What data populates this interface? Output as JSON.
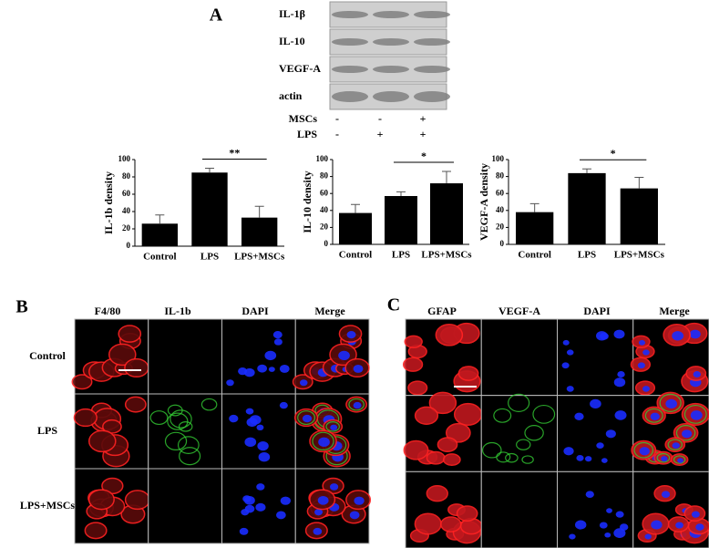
{
  "panel_labels": [
    "A",
    "B",
    "C"
  ],
  "blot": {
    "rows": [
      "IL-1β",
      "IL-10",
      "VEGF-A",
      "actin"
    ],
    "treatments": [
      {
        "name": "MSCs",
        "marks": [
          "-",
          "-",
          "+"
        ]
      },
      {
        "name": "LPS",
        "marks": [
          "-",
          "+",
          "+"
        ]
      }
    ]
  },
  "chart_data": [
    {
      "type": "bar",
      "y_label": "IL-1b density",
      "categories": [
        "Control",
        "LPS",
        "LPS+MSCs"
      ],
      "values": [
        26,
        85,
        33
      ],
      "errors": [
        10,
        5,
        13
      ],
      "color": "#000000",
      "ylim": [
        0,
        100
      ],
      "yticks": [
        0,
        20,
        40,
        60,
        80,
        100
      ],
      "significance": {
        "label": "**",
        "between": [
          "LPS",
          "LPS+MSCs"
        ]
      }
    },
    {
      "type": "bar",
      "y_label": "IL-10 density",
      "categories": [
        "Control",
        "LPS",
        "LPS+MSCs"
      ],
      "values": [
        37,
        57,
        72
      ],
      "errors": [
        10,
        5,
        14
      ],
      "color": "#000000",
      "ylim": [
        0,
        100
      ],
      "yticks": [
        0,
        20,
        40,
        60,
        80,
        100
      ],
      "significance": {
        "label": "*",
        "between": [
          "LPS",
          "LPS+MSCs"
        ]
      }
    },
    {
      "type": "bar",
      "y_label": "VEGF-A density",
      "categories": [
        "Control",
        "LPS",
        "LPS+MSCs"
      ],
      "values": [
        38,
        84,
        66
      ],
      "errors": [
        10,
        5,
        13
      ],
      "color": "#000000",
      "ylim": [
        0,
        100
      ],
      "yticks": [
        0,
        20,
        40,
        60,
        80,
        100
      ],
      "significance": {
        "label": "*",
        "between": [
          "LPS",
          "LPS+MSCs"
        ]
      }
    }
  ],
  "microscopy": [
    {
      "columns": [
        "F4/80",
        "IL-1b",
        "DAPI",
        "Merge"
      ],
      "rows": [
        "Control",
        "LPS",
        "LPS+MSCs"
      ]
    },
    {
      "columns": [
        "GFAP",
        "VEGF-A",
        "DAPI",
        "Merge"
      ]
    }
  ]
}
